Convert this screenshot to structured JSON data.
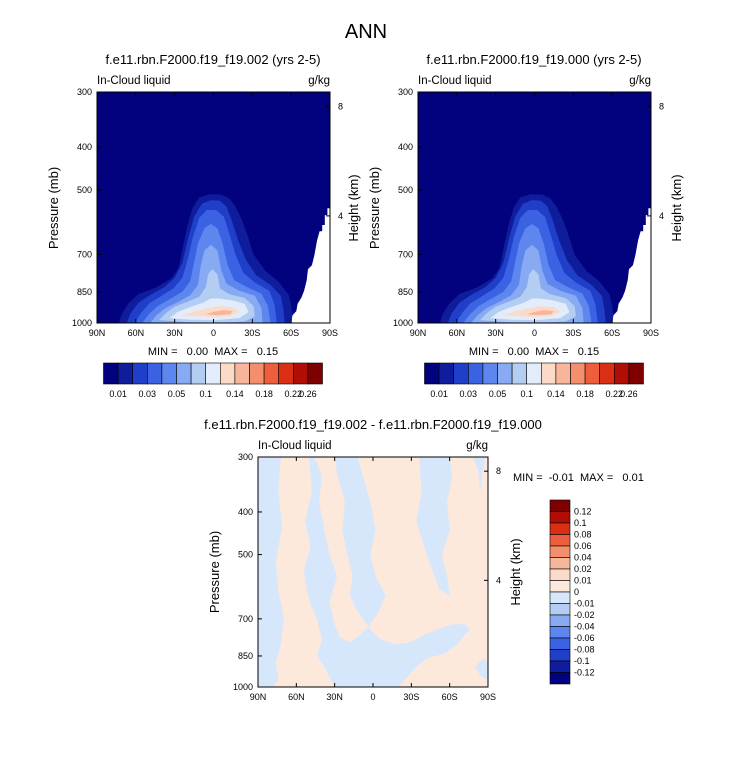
{
  "figure": {
    "title": "ANN"
  },
  "chart_data": [
    {
      "type": "heatmap",
      "title": "f.e11.rbn.F2000.f19_f19.002 (yrs 2-5)",
      "left_label": "In-Cloud liquid",
      "units": "g/kg",
      "ylabel": "Pressure (mb)",
      "ylabel_right": "Height (km)",
      "xticks": [
        "90N",
        "60N",
        "30N",
        "0",
        "30S",
        "60S",
        "90S"
      ],
      "yticks": [
        "300",
        "400",
        "500",
        "700",
        "850",
        "1000"
      ],
      "yticks_right": [
        "8",
        "4"
      ],
      "min_text": "MIN =   0.00  MAX =   0.15",
      "min": 0.0,
      "max": 0.15,
      "colorbar_labels": [
        "0.01",
        "0.03",
        "0.05",
        "0.1",
        "0.14",
        "0.18",
        "0.22",
        "0.26"
      ],
      "colorbar_orientation": "horizontal",
      "x_range": [
        90,
        -90
      ],
      "y_range_mb": [
        300,
        1000
      ],
      "colormap": "blue-white-red, 13 levels"
    },
    {
      "type": "heatmap",
      "title": "f.e11.rbn.F2000.f19_f19.000 (yrs 2-5)",
      "left_label": "In-Cloud liquid",
      "units": "g/kg",
      "ylabel": "Pressure (mb)",
      "ylabel_right": "Height (km)",
      "xticks": [
        "90N",
        "60N",
        "30N",
        "0",
        "30S",
        "60S",
        "90S"
      ],
      "yticks": [
        "300",
        "400",
        "500",
        "700",
        "850",
        "1000"
      ],
      "yticks_right": [
        "8",
        "4"
      ],
      "min_text": "MIN =   0.00  MAX =   0.15",
      "min": 0.0,
      "max": 0.15,
      "colorbar_labels": [
        "0.01",
        "0.03",
        "0.05",
        "0.1",
        "0.14",
        "0.18",
        "0.22",
        "0.26"
      ],
      "colorbar_orientation": "horizontal",
      "x_range": [
        90,
        -90
      ],
      "y_range_mb": [
        300,
        1000
      ],
      "colormap": "blue-white-red, 13 levels"
    },
    {
      "type": "heatmap",
      "title": "f.e11.rbn.F2000.f19_f19.002 - f.e11.rbn.F2000.f19_f19.000",
      "left_label": "In-Cloud liquid",
      "units": "g/kg",
      "ylabel": "Pressure (mb)",
      "ylabel_right": "Height (km)",
      "xticks": [
        "90N",
        "60N",
        "30N",
        "0",
        "30S",
        "60S",
        "90S"
      ],
      "yticks": [
        "300",
        "400",
        "500",
        "700",
        "850",
        "1000"
      ],
      "yticks_right": [
        "8",
        "4"
      ],
      "min_text": "MIN =  -0.01  MAX =   0.01",
      "min": -0.01,
      "max": 0.01,
      "colorbar_labels": [
        "0.12",
        "0.1",
        "0.08",
        "0.06",
        "0.04",
        "0.02",
        "0.01",
        "0",
        "-0.01",
        "-0.02",
        "-0.04",
        "-0.06",
        "-0.08",
        "-0.1",
        "-0.12"
      ],
      "colorbar_orientation": "vertical",
      "x_range": [
        90,
        -90
      ],
      "y_range_mb": [
        300,
        1000
      ],
      "colormap": "blue-white-red, 16 levels"
    }
  ],
  "colors": {
    "seq": [
      "#02027f",
      "#0f1d9c",
      "#1f3fc8",
      "#3b62e3",
      "#5d86ef",
      "#88aaf2",
      "#b4cdf3",
      "#e2ecfa",
      "#fbdbc7",
      "#f7b69b",
      "#f38f6c",
      "#ee5e3c",
      "#da2e15",
      "#b10d07",
      "#7f0000"
    ],
    "diff": [
      "#7f0000",
      "#b10d07",
      "#da2e15",
      "#ee5e3c",
      "#f38f6c",
      "#f7b69b",
      "#fbdbc7",
      "#fde9dc",
      "#d7e7fb",
      "#b4cdf3",
      "#88aaf2",
      "#5d86ef",
      "#3b62e3",
      "#1f3fc8",
      "#0f1d9c",
      "#02027f"
    ],
    "diff_positive_fill": "#fde9dc",
    "diff_negative_fill": "#d7e7fb"
  }
}
